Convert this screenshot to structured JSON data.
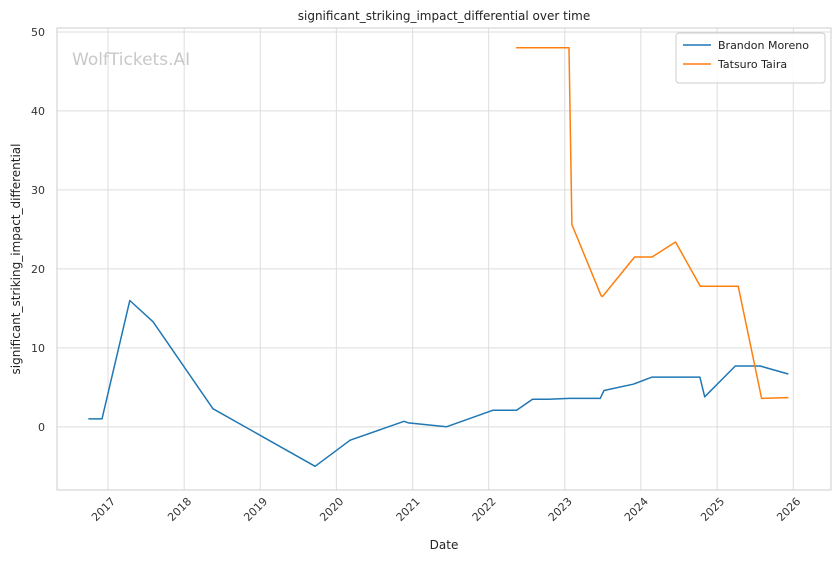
{
  "chart_data": {
    "type": "line",
    "title": "significant_striking_impact_differential over time",
    "xlabel": "Date",
    "ylabel": "significant_striking_impact_differential",
    "watermark": "WolfTickets.AI",
    "xlim": [
      "2016-05-01",
      "2026-07-01"
    ],
    "ylim": [
      -8,
      50.5
    ],
    "x_ticks": [
      {
        "label": "2017",
        "date": "2017-01-01"
      },
      {
        "label": "2018",
        "date": "2018-01-01"
      },
      {
        "label": "2019",
        "date": "2019-01-01"
      },
      {
        "label": "2020",
        "date": "2020-01-01"
      },
      {
        "label": "2021",
        "date": "2021-01-01"
      },
      {
        "label": "2022",
        "date": "2022-01-01"
      },
      {
        "label": "2023",
        "date": "2023-01-01"
      },
      {
        "label": "2024",
        "date": "2024-01-01"
      },
      {
        "label": "2025",
        "date": "2025-01-01"
      },
      {
        "label": "2026",
        "date": "2026-01-01"
      }
    ],
    "y_ticks": [
      0,
      10,
      20,
      30,
      40,
      50
    ],
    "grid": true,
    "legend_position": "top-right",
    "series": [
      {
        "name": "Brandon Moreno",
        "color": "#1f77b4",
        "points": [
          {
            "x": "2016-10-01",
            "y": 1.0
          },
          {
            "x": "2016-12-03",
            "y": 1.0
          },
          {
            "x": "2017-04-15",
            "y": 16.0
          },
          {
            "x": "2017-08-05",
            "y": 13.3
          },
          {
            "x": "2018-05-19",
            "y": 2.3
          },
          {
            "x": "2019-09-21",
            "y": -5.0
          },
          {
            "x": "2020-03-07",
            "y": -1.7
          },
          {
            "x": "2020-11-21",
            "y": 0.7
          },
          {
            "x": "2020-12-12",
            "y": 0.5
          },
          {
            "x": "2021-06-12",
            "y": 0.0
          },
          {
            "x": "2022-01-22",
            "y": 2.1
          },
          {
            "x": "2022-05-15",
            "y": 2.1
          },
          {
            "x": "2022-07-30",
            "y": 3.5
          },
          {
            "x": "2022-10-15",
            "y": 3.5
          },
          {
            "x": "2023-01-21",
            "y": 3.6
          },
          {
            "x": "2023-06-20",
            "y": 3.6
          },
          {
            "x": "2023-07-08",
            "y": 4.6
          },
          {
            "x": "2023-11-25",
            "y": 5.4
          },
          {
            "x": "2024-02-24",
            "y": 6.3
          },
          {
            "x": "2024-10-10",
            "y": 6.3
          },
          {
            "x": "2024-11-02",
            "y": 3.8
          },
          {
            "x": "2025-03-29",
            "y": 7.7
          },
          {
            "x": "2025-07-26",
            "y": 7.7
          },
          {
            "x": "2025-12-06",
            "y": 6.7
          }
        ]
      },
      {
        "name": "Tatsuro Taira",
        "color": "#ff7f0e",
        "points": [
          {
            "x": "2022-05-15",
            "y": 48.0
          },
          {
            "x": "2022-12-15",
            "y": 48.0
          },
          {
            "x": "2023-01-21",
            "y": 48.0
          },
          {
            "x": "2023-02-04",
            "y": 25.6
          },
          {
            "x": "2023-06-24",
            "y": 16.6
          },
          {
            "x": "2023-07-01",
            "y": 16.5
          },
          {
            "x": "2023-12-02",
            "y": 21.5
          },
          {
            "x": "2024-02-24",
            "y": 21.5
          },
          {
            "x": "2024-06-15",
            "y": 23.4
          },
          {
            "x": "2024-10-12",
            "y": 17.8
          },
          {
            "x": "2025-04-12",
            "y": 17.8
          },
          {
            "x": "2025-08-02",
            "y": 3.6
          },
          {
            "x": "2025-12-06",
            "y": 3.7
          }
        ]
      }
    ]
  }
}
